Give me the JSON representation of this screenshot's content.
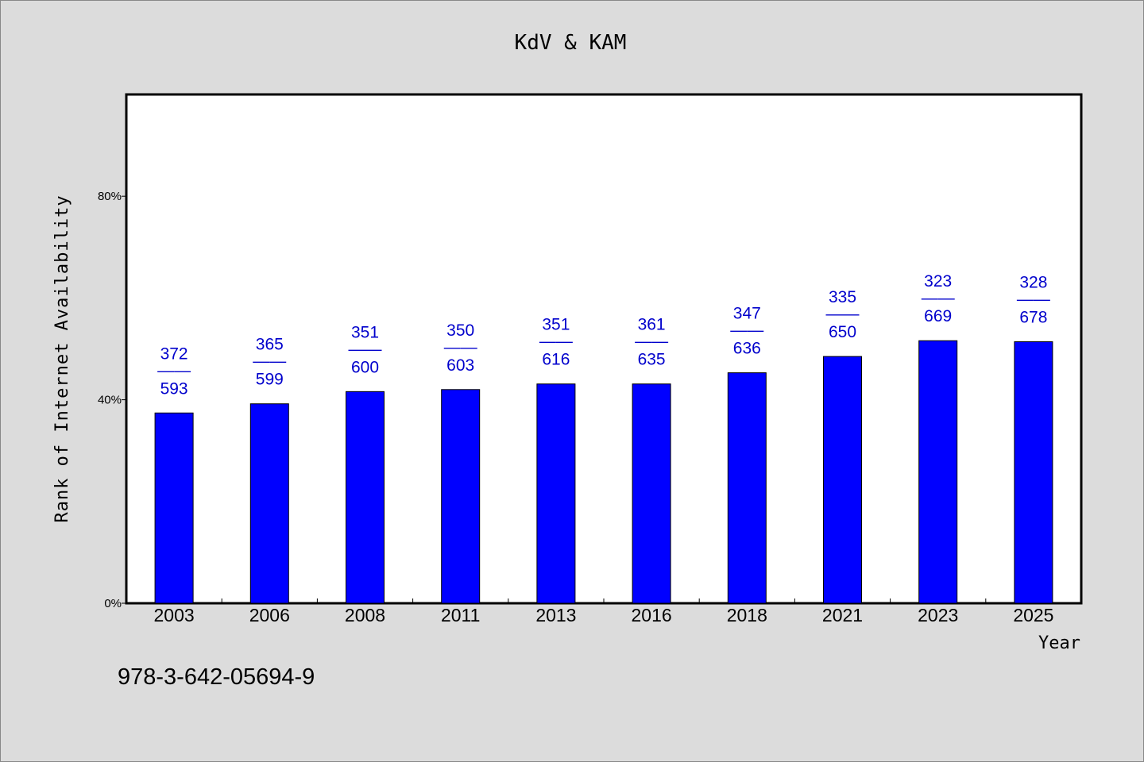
{
  "chart_data": {
    "type": "bar",
    "title": "KdV & KAM",
    "xlabel": "Year",
    "ylabel": "Rank of Internet Availability",
    "ylim": [
      0,
      100
    ],
    "yticks": [
      {
        "value": 0,
        "label": "0%"
      },
      {
        "value": 40,
        "label": "40%"
      },
      {
        "value": 80,
        "label": "80%"
      }
    ],
    "categories": [
      "2003",
      "2006",
      "2008",
      "2011",
      "2013",
      "2016",
      "2018",
      "2021",
      "2023",
      "2025"
    ],
    "values": [
      37.4,
      39.2,
      41.6,
      42.0,
      43.1,
      43.1,
      45.3,
      48.5,
      51.6,
      51.4
    ],
    "labels": [
      {
        "top": "372",
        "sep": "——",
        "bottom": "593"
      },
      {
        "top": "365",
        "sep": "——",
        "bottom": "599"
      },
      {
        "top": "351",
        "sep": "——",
        "bottom": "600"
      },
      {
        "top": "350",
        "sep": "——",
        "bottom": "603"
      },
      {
        "top": "351",
        "sep": "——",
        "bottom": "616"
      },
      {
        "top": "361",
        "sep": "——",
        "bottom": "635"
      },
      {
        "top": "347",
        "sep": "——",
        "bottom": "636"
      },
      {
        "top": "335",
        "sep": "——",
        "bottom": "650"
      },
      {
        "top": "323",
        "sep": "——",
        "bottom": "669"
      },
      {
        "top": "328",
        "sep": "——",
        "bottom": "678"
      }
    ],
    "bar_color": "#0000ff",
    "label_color": "#0000cc",
    "grid": false,
    "legend": "none"
  },
  "footnote": "978-3-642-05694-9"
}
